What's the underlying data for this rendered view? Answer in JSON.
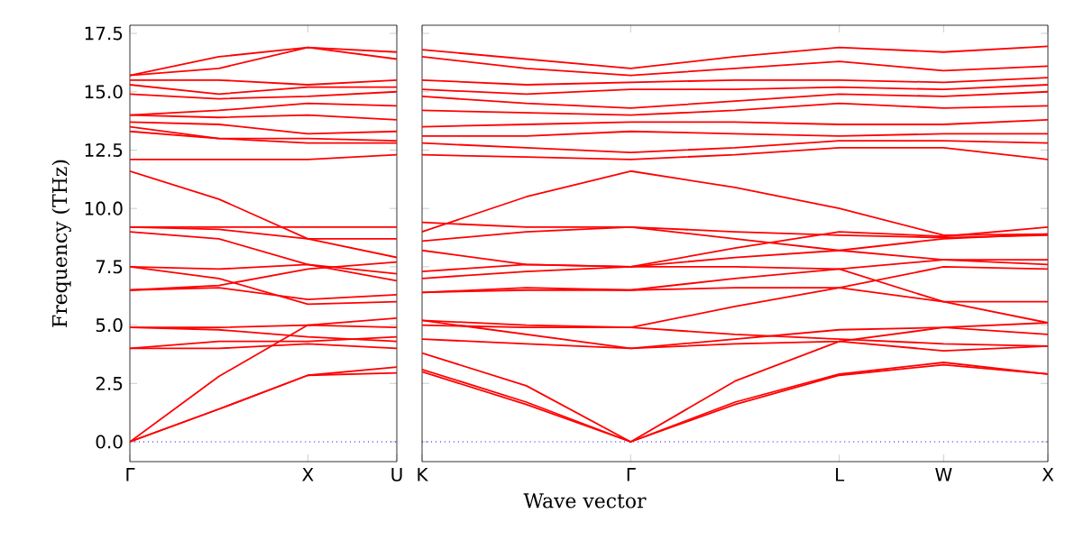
{
  "chart_data": [
    {
      "type": "line",
      "ylabel": "Frequency (THz)",
      "categories": [
        "Γ",
        null,
        "X",
        "U"
      ],
      "ylim": [
        -0.85,
        17.85
      ],
      "yticks": [
        {
          "value": 0,
          "label": "0.0"
        },
        {
          "value": 2.5,
          "label": "2.5"
        },
        {
          "value": 5,
          "label": "5.0"
        },
        {
          "value": 7.5,
          "label": "7.5"
        },
        {
          "value": 10,
          "label": "10.0"
        },
        {
          "value": 12.5,
          "label": "12.5"
        },
        {
          "value": 15,
          "label": "15.0"
        },
        {
          "value": 17.5,
          "label": "17.5"
        }
      ],
      "ref_lines": [
        {
          "axis": "y",
          "value": 0,
          "color": "#0000ff",
          "line_style": "dotted"
        }
      ],
      "series": [
        {
          "color": "#ff0000",
          "values": [
            0,
            1.4,
            2.85,
            2.95
          ]
        },
        {
          "color": "#ff0000",
          "values": [
            0,
            1.4,
            2.85,
            3.2
          ]
        },
        {
          "color": "#ff0000",
          "values": [
            0,
            2.8,
            5.0,
            5.3
          ]
        },
        {
          "color": "#ff0000",
          "values": [
            4.0,
            4.3,
            4.3,
            4.5
          ]
        },
        {
          "color": "#ff0000",
          "values": [
            4.0,
            4.0,
            4.2,
            4.0
          ]
        },
        {
          "color": "#ff0000",
          "values": [
            4.9,
            4.9,
            5.0,
            4.9
          ]
        },
        {
          "color": "#ff0000",
          "values": [
            4.9,
            4.8,
            4.5,
            4.3
          ]
        },
        {
          "color": "#ff0000",
          "values": [
            6.5,
            6.7,
            7.4,
            7.7
          ]
        },
        {
          "color": "#ff0000",
          "values": [
            6.5,
            6.6,
            6.1,
            6.3
          ]
        },
        {
          "color": "#ff0000",
          "values": [
            7.5,
            7.0,
            5.9,
            6.0
          ]
        },
        {
          "color": "#ff0000",
          "values": [
            7.5,
            7.4,
            7.6,
            6.9
          ]
        },
        {
          "color": "#ff0000",
          "values": [
            9.0,
            8.7,
            7.6,
            7.2
          ]
        },
        {
          "color": "#ff0000",
          "values": [
            9.2,
            9.1,
            8.7,
            7.9
          ]
        },
        {
          "color": "#ff0000",
          "values": [
            9.2,
            9.2,
            9.2,
            9.2
          ]
        },
        {
          "color": "#ff0000",
          "values": [
            11.6,
            10.4,
            8.7,
            8.7
          ]
        },
        {
          "color": "#ff0000",
          "values": [
            12.1,
            12.1,
            12.1,
            12.3
          ]
        },
        {
          "color": "#ff0000",
          "values": [
            13.3,
            13.0,
            12.8,
            12.8
          ]
        },
        {
          "color": "#ff0000",
          "values": [
            13.5,
            13.0,
            13.0,
            12.9
          ]
        },
        {
          "color": "#ff0000",
          "values": [
            13.7,
            13.6,
            13.2,
            13.3
          ]
        },
        {
          "color": "#ff0000",
          "values": [
            14.0,
            13.9,
            14.0,
            13.8
          ]
        },
        {
          "color": "#ff0000",
          "values": [
            14.0,
            14.2,
            14.5,
            14.4
          ]
        },
        {
          "color": "#ff0000",
          "values": [
            14.9,
            14.7,
            14.8,
            15.0
          ]
        },
        {
          "color": "#ff0000",
          "values": [
            15.3,
            14.9,
            15.2,
            15.2
          ]
        },
        {
          "color": "#ff0000",
          "values": [
            15.5,
            15.5,
            15.3,
            15.5
          ]
        },
        {
          "color": "#ff0000",
          "values": [
            15.7,
            16.5,
            16.9,
            16.7
          ]
        },
        {
          "color": "#ff0000",
          "values": [
            15.7,
            16.0,
            16.9,
            16.4
          ]
        }
      ]
    },
    {
      "type": "line",
      "xlabel": "Wave vector",
      "tick_labels": "x",
      "categories": [
        "K",
        null,
        "Γ",
        null,
        "L",
        "W",
        "X"
      ],
      "ylim": [
        -0.85,
        17.85
      ],
      "yticks": [
        {
          "value": 0,
          "label": null
        },
        {
          "value": 2.5,
          "label": null
        },
        {
          "value": 5,
          "label": null
        },
        {
          "value": 7.5,
          "label": null
        },
        {
          "value": 10,
          "label": null
        },
        {
          "value": 12.5,
          "label": null
        },
        {
          "value": 15,
          "label": null
        },
        {
          "value": 17.5,
          "label": null
        }
      ],
      "ref_lines": [
        {
          "axis": "y",
          "value": 0,
          "color": "#0000ff",
          "line_style": "dotted"
        }
      ],
      "series": [
        {
          "color": "#ff0000",
          "values": [
            3.0,
            1.6,
            0,
            1.6,
            2.85,
            3.3,
            2.9
          ]
        },
        {
          "color": "#ff0000",
          "values": [
            3.1,
            1.7,
            0,
            1.7,
            2.9,
            3.4,
            2.9
          ]
        },
        {
          "color": "#ff0000",
          "values": [
            3.8,
            2.4,
            0,
            2.6,
            4.3,
            3.9,
            4.1
          ]
        },
        {
          "color": "#ff0000",
          "values": [
            4.4,
            4.2,
            4.0,
            4.2,
            4.3,
            4.9,
            4.6
          ]
        },
        {
          "color": "#ff0000",
          "values": [
            5.2,
            4.6,
            4.0,
            4.4,
            4.8,
            4.9,
            5.1
          ]
        },
        {
          "color": "#ff0000",
          "values": [
            5.2,
            5.0,
            4.9,
            5.8,
            6.6,
            6.0,
            6.0
          ]
        },
        {
          "color": "#ff0000",
          "values": [
            5.0,
            4.9,
            4.9,
            4.6,
            4.4,
            4.2,
            4.1
          ]
        },
        {
          "color": "#ff0000",
          "values": [
            6.4,
            6.6,
            6.5,
            7.0,
            7.4,
            7.8,
            7.8
          ]
        },
        {
          "color": "#ff0000",
          "values": [
            6.4,
            6.5,
            6.5,
            6.6,
            6.6,
            7.5,
            7.4
          ]
        },
        {
          "color": "#ff0000",
          "values": [
            7.0,
            7.3,
            7.5,
            7.9,
            8.2,
            8.7,
            8.9
          ]
        },
        {
          "color": "#ff0000",
          "values": [
            7.3,
            7.6,
            7.5,
            7.5,
            7.4,
            6.0,
            5.1
          ]
        },
        {
          "color": "#ff0000",
          "values": [
            8.2,
            7.6,
            7.5,
            8.3,
            9.0,
            8.8,
            9.2
          ]
        },
        {
          "color": "#ff0000",
          "values": [
            8.6,
            9.0,
            9.2,
            8.7,
            8.2,
            7.8,
            7.6
          ]
        },
        {
          "color": "#ff0000",
          "values": [
            9.4,
            9.2,
            9.2,
            9.0,
            8.85,
            8.75,
            8.85
          ]
        },
        {
          "color": "#ff0000",
          "values": [
            9.0,
            10.5,
            11.6,
            10.9,
            10.0,
            8.85,
            8.9
          ]
        },
        {
          "color": "#ff0000",
          "values": [
            12.3,
            12.2,
            12.1,
            12.3,
            12.6,
            12.6,
            12.1
          ]
        },
        {
          "color": "#ff0000",
          "values": [
            12.8,
            12.6,
            12.4,
            12.6,
            12.9,
            12.9,
            12.8
          ]
        },
        {
          "color": "#ff0000",
          "values": [
            13.1,
            13.1,
            13.3,
            13.2,
            13.1,
            13.2,
            13.2
          ]
        },
        {
          "color": "#ff0000",
          "values": [
            13.5,
            13.6,
            13.7,
            13.7,
            13.6,
            13.6,
            13.8
          ]
        },
        {
          "color": "#ff0000",
          "values": [
            14.2,
            14.1,
            14.0,
            14.2,
            14.5,
            14.3,
            14.4
          ]
        },
        {
          "color": "#ff0000",
          "values": [
            14.8,
            14.5,
            14.3,
            14.6,
            14.9,
            14.8,
            15.0
          ]
        },
        {
          "color": "#ff0000",
          "values": [
            15.1,
            14.9,
            15.1,
            15.1,
            15.2,
            15.1,
            15.3
          ]
        },
        {
          "color": "#ff0000",
          "values": [
            15.5,
            15.3,
            15.4,
            15.5,
            15.5,
            15.4,
            15.6
          ]
        },
        {
          "color": "#ff0000",
          "values": [
            16.5,
            16.0,
            15.7,
            16.0,
            16.3,
            15.9,
            16.1
          ]
        },
        {
          "color": "#ff0000",
          "values": [
            16.8,
            16.4,
            16.0,
            16.5,
            16.9,
            16.7,
            16.95
          ]
        }
      ]
    }
  ]
}
